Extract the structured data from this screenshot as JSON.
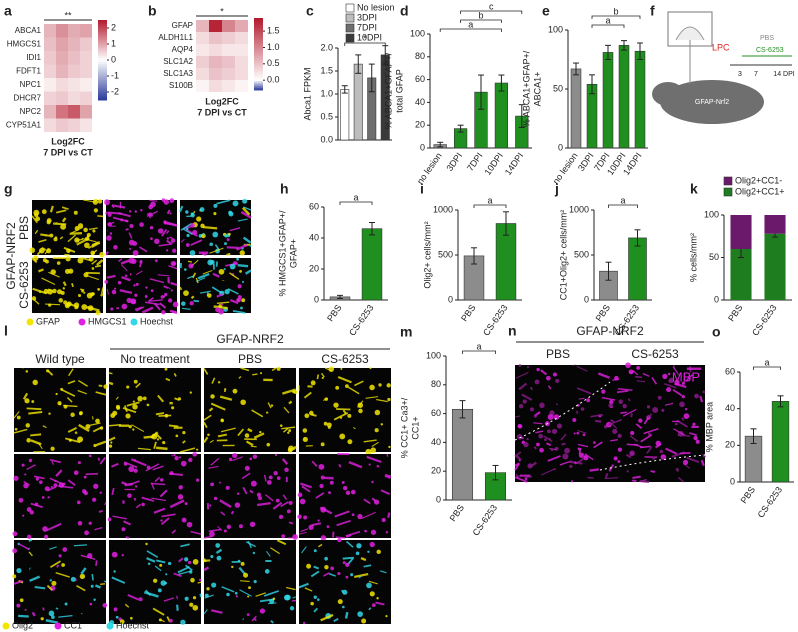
{
  "chart_data": [
    {
      "panel": "a",
      "type": "heatmap",
      "rows": [
        "ABCA1",
        "HMGCS1",
        "IDI1",
        "FDFT1",
        "NPC1",
        "DHCR7",
        "NPC2",
        "CYP51A1"
      ],
      "values": [
        [
          0.8,
          1.2,
          0.9,
          1.0
        ],
        [
          0.7,
          1.0,
          0.8,
          0.6
        ],
        [
          0.6,
          0.9,
          0.7,
          0.5
        ],
        [
          0.5,
          0.8,
          0.6,
          0.5
        ],
        [
          0.2,
          0.4,
          0.3,
          0.2
        ],
        [
          0.5,
          0.6,
          0.4,
          0.5
        ],
        [
          0.8,
          1.5,
          1.8,
          1.0
        ],
        [
          0.4,
          0.6,
          0.5,
          0.3
        ]
      ],
      "title": [
        "Log2FC",
        "7 DPI vs CT"
      ],
      "significance": "**",
      "colorbar_lim": [
        -2.5,
        2.5
      ],
      "colorbar_ticks": [
        2,
        1,
        0,
        -1,
        -2
      ],
      "colormap": [
        "#2a3a9a",
        "#ffffff",
        "#b2182b"
      ]
    },
    {
      "panel": "b",
      "type": "heatmap",
      "rows": [
        "GFAP",
        "ALDH1L1",
        "AQP4",
        "SLC1A2",
        "SLC1A3",
        "S100B"
      ],
      "values": [
        [
          0.6,
          1.8,
          1.0,
          0.7
        ],
        [
          0.3,
          0.5,
          0.4,
          0.3
        ],
        [
          0.2,
          0.3,
          0.2,
          0.2
        ],
        [
          0.4,
          0.6,
          0.5,
          0.3
        ],
        [
          0.3,
          0.5,
          0.4,
          0.3
        ],
        [
          0.1,
          0.3,
          0.2,
          0.1
        ]
      ],
      "title": [
        "Log2FC",
        "7 DPI vs CT"
      ],
      "significance": "*",
      "colorbar_lim": [
        -0.3,
        1.9
      ],
      "colorbar_ticks": [
        1.5,
        {
          "value": 1.0,
          "label": "1.0"
        },
        0.5,
        {
          "value": 0,
          "label": "0.0"
        }
      ],
      "colormap": [
        "#2a3a9a",
        "#ffffff",
        "#b2182b"
      ]
    },
    {
      "panel": "c",
      "type": "bar",
      "ylabel": [
        "Abca1 FPKM"
      ],
      "legend": true,
      "series": [
        {
          "name": "No lesion",
          "color": "#ffffff",
          "values": [
            1.1
          ],
          "errors": [
            0.08
          ]
        },
        {
          "name": "3DPI",
          "color": "#bdbdbd",
          "values": [
            1.65
          ],
          "errors": [
            0.2
          ]
        },
        {
          "name": "7DPI",
          "color": "#6e6e6e",
          "values": [
            1.35
          ],
          "errors": [
            0.3
          ]
        },
        {
          "name": "10DPI",
          "color": "#3a3a3a",
          "values": [
            1.85
          ],
          "errors": [
            0.2
          ]
        }
      ],
      "ylim": [
        0,
        2
      ],
      "yticks": [
        {
          "value": 0,
          "label": "0.0"
        },
        0.5,
        {
          "value": 1,
          "label": "1.0"
        },
        1.5,
        {
          "value": 2,
          "label": "2.0"
        }
      ],
      "comparisons": [
        {
          "label": "*",
          "groups": [
            "No lesion",
            "10DPI"
          ]
        }
      ]
    },
    {
      "panel": "d",
      "type": "bar",
      "ylabel": [
        "% ABCA1+GFAP+/",
        "total GFAP"
      ],
      "categories": [
        "no lesion",
        "3DPI",
        "7DPI",
        "10DPI",
        "14DPI"
      ],
      "values": [
        3,
        17,
        49,
        57,
        28
      ],
      "errors": [
        2,
        3,
        15,
        7,
        10
      ],
      "colors": [
        "#8c8c8c",
        "#1f8f1f",
        "#1f8f1f",
        "#1f8f1f",
        "#1f8f1f"
      ],
      "ylim": [
        0,
        100
      ],
      "yticks": [
        0,
        20,
        40,
        60,
        80,
        100
      ],
      "comparisons": [
        {
          "label": "a",
          "groups": [
            "no lesion",
            "10DPI"
          ]
        },
        {
          "label": "b",
          "groups": [
            "3DPI",
            "10DPI"
          ]
        },
        {
          "label": "c",
          "groups": [
            "3DPI",
            "14DPI"
          ]
        }
      ]
    },
    {
      "panel": "e",
      "type": "bar",
      "ylabel": [
        "% ABCA1+GFAP+/",
        "ABCA1+"
      ],
      "categories": [
        "no lesion",
        "3DPI",
        "7DPI",
        "10DPI",
        "14DPI"
      ],
      "values": [
        67,
        54,
        81,
        87,
        82
      ],
      "errors": [
        5,
        8,
        6,
        4,
        7
      ],
      "colors": [
        "#8c8c8c",
        "#1f8f1f",
        "#1f8f1f",
        "#1f8f1f",
        "#1f8f1f"
      ],
      "ylim": [
        0,
        100
      ],
      "yticks": [
        0,
        50,
        100
      ],
      "comparisons": [
        {
          "label": "a",
          "groups": [
            "3DPI",
            "10DPI"
          ]
        },
        {
          "label": "b",
          "groups": [
            "3DPI",
            "14DPI"
          ]
        }
      ]
    },
    {
      "panel": "h",
      "type": "bar",
      "ylabel": [
        "% HMGCS1+GFAP+/",
        "GFAP+"
      ],
      "categories": [
        "PBS",
        "CS-6253"
      ],
      "values": [
        2,
        46
      ],
      "errors": [
        1,
        4
      ],
      "colors": [
        "#8c8c8c",
        "#1f8f1f"
      ],
      "ylim": [
        0,
        60
      ],
      "yticks": [
        0,
        20,
        40,
        60
      ],
      "comparisons": [
        {
          "label": "a",
          "groups": [
            "PBS",
            "CS-6253"
          ]
        }
      ]
    },
    {
      "panel": "i",
      "type": "bar",
      "ylabel": [
        "Olig2+ cells/mm²"
      ],
      "categories": [
        "PBS",
        "CS-6253"
      ],
      "values": [
        490,
        850
      ],
      "errors": [
        90,
        130
      ],
      "colors": [
        "#8c8c8c",
        "#1f8f1f"
      ],
      "ylim": [
        0,
        1000
      ],
      "yticks": [
        0,
        500,
        1000
      ],
      "comparisons": [
        {
          "label": "a",
          "groups": [
            "PBS",
            "CS-6253"
          ]
        }
      ]
    },
    {
      "panel": "j",
      "type": "bar",
      "ylabel": [
        "CC1+Olig2+ cells/mm²"
      ],
      "categories": [
        "PBS",
        "CS-6253"
      ],
      "values": [
        320,
        690
      ],
      "errors": [
        100,
        90
      ],
      "colors": [
        "#8c8c8c",
        "#1f8f1f"
      ],
      "ylim": [
        0,
        1000
      ],
      "yticks": [
        0,
        500,
        1000
      ],
      "comparisons": [
        {
          "label": "a",
          "groups": [
            "PBS",
            "CS-6253"
          ]
        }
      ]
    },
    {
      "panel": "k",
      "type": "bar",
      "stacked": true,
      "legend": true,
      "ylabel": [
        "% cells/mm²"
      ],
      "categories": [
        "PBS",
        "CS-6253"
      ],
      "series": [
        {
          "name": "Olig2+CC1-",
          "color": "#6b1a6b",
          "values": [
            40,
            22
          ]
        },
        {
          "name": "Olig2+CC1+",
          "color": "#1e7d1e",
          "values": [
            60,
            78
          ],
          "errors": [
            10,
            4
          ]
        }
      ],
      "ylim": [
        0,
        100
      ],
      "yticks": [
        0,
        50,
        100
      ]
    },
    {
      "panel": "m",
      "type": "bar",
      "ylabel": [
        "% CC1+ Ca3+/",
        "CC1+"
      ],
      "categories": [
        "PBS",
        "CS-6253"
      ],
      "values": [
        63,
        19
      ],
      "errors": [
        6,
        5
      ],
      "colors": [
        "#8c8c8c",
        "#1f8f1f"
      ],
      "ylim": [
        0,
        100
      ],
      "yticks": [
        0,
        20,
        40,
        60,
        80,
        100
      ],
      "comparisons": [
        {
          "label": "a",
          "groups": [
            "PBS",
            "CS-6253"
          ]
        }
      ]
    },
    {
      "panel": "o",
      "type": "bar",
      "ylabel": [
        "% MBP area"
      ],
      "categories": [
        "PBS",
        "CS-6253"
      ],
      "values": [
        25,
        44
      ],
      "errors": [
        4,
        3
      ],
      "colors": [
        "#8c8c8c",
        "#1f8f1f"
      ],
      "ylim": [
        0,
        60
      ],
      "yticks": [
        0,
        20,
        40,
        60
      ],
      "comparisons": [
        {
          "label": "a",
          "groups": [
            "PBS",
            "CS-6253"
          ]
        }
      ]
    }
  ],
  "image_panels": [
    {
      "panel": "f",
      "labels": [
        "LPC",
        "PBS",
        "CS-6253",
        "3",
        "7",
        "14 DPI",
        "GFAP-Nrf2"
      ]
    },
    {
      "panel": "g",
      "group_label": "GFAP-NRF2",
      "row_labels": [
        "PBS",
        "CS-6253"
      ],
      "legend": [
        {
          "name": "GFAP",
          "color": "#f2e600"
        },
        {
          "name": "HMGCS1",
          "color": "#e020e0"
        },
        {
          "name": "Hoechst",
          "color": "#30d8e8"
        }
      ]
    },
    {
      "panel": "l",
      "group_label": "GFAP-NRF2",
      "column_labels": [
        "Wild type",
        "No treatment",
        "PBS",
        "CS-6253"
      ],
      "legend": [
        {
          "name": "Olig2",
          "color": "#f2e600"
        },
        {
          "name": "CC1",
          "color": "#e020e0"
        },
        {
          "name": "Hoechst",
          "color": "#30d8e8"
        }
      ]
    },
    {
      "panel": "n",
      "group_label": "GFAP-NRF2",
      "column_labels": [
        "PBS",
        "CS-6253"
      ],
      "stain": "MBP"
    }
  ]
}
